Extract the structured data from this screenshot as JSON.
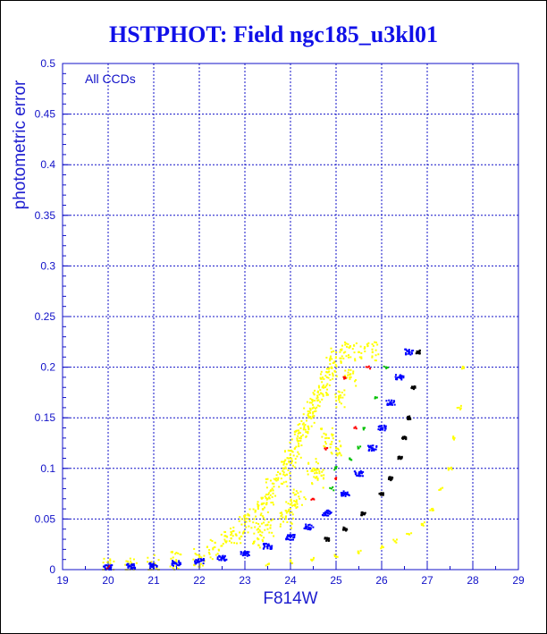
{
  "chart_data": {
    "type": "scatter",
    "title": "HSTPHOT: Field ngc185_u3kl01",
    "xlabel": "F814W",
    "ylabel": "photometric error",
    "annotation": "All CCDs",
    "xlim": [
      19,
      29
    ],
    "ylim": [
      0,
      0.5
    ],
    "x_ticks": [
      "19",
      "20",
      "21",
      "22",
      "23",
      "24",
      "25",
      "26",
      "27",
      "28",
      "29"
    ],
    "y_ticks": [
      "0",
      "0.05",
      "0.1",
      "0.15",
      "0.2",
      "0.25",
      "0.3",
      "0.35",
      "0.4",
      "0.45",
      "0.5"
    ],
    "grid": true,
    "series": [
      {
        "color": "#ffff00",
        "description_points": "broad scatter above the main sequence",
        "points": [
          [
            20.0,
            0.002
          ],
          [
            20.5,
            0.003
          ],
          [
            21.0,
            0.005
          ],
          [
            21.5,
            0.008
          ],
          [
            22.0,
            0.012
          ],
          [
            22.3,
            0.02
          ],
          [
            22.6,
            0.028
          ],
          [
            22.8,
            0.035
          ],
          [
            23.0,
            0.045
          ],
          [
            23.2,
            0.05
          ],
          [
            23.4,
            0.06
          ],
          [
            23.5,
            0.07
          ],
          [
            23.6,
            0.08
          ],
          [
            23.8,
            0.09
          ],
          [
            23.9,
            0.1
          ],
          [
            24.0,
            0.11
          ],
          [
            24.1,
            0.12
          ],
          [
            24.2,
            0.13
          ],
          [
            24.3,
            0.14
          ],
          [
            24.4,
            0.15
          ],
          [
            24.5,
            0.16
          ],
          [
            24.6,
            0.17
          ],
          [
            24.7,
            0.18
          ],
          [
            24.8,
            0.19
          ],
          [
            24.9,
            0.2
          ],
          [
            25.0,
            0.21
          ],
          [
            25.2,
            0.215
          ],
          [
            25.5,
            0.215
          ],
          [
            25.8,
            0.215
          ],
          [
            24.5,
            0.1
          ],
          [
            24.2,
            0.07
          ],
          [
            23.9,
            0.05
          ],
          [
            23.5,
            0.04
          ],
          [
            24.8,
            0.13
          ],
          [
            25.1,
            0.17
          ],
          [
            25.3,
            0.19
          ],
          [
            24.0,
            0.06
          ],
          [
            23.3,
            0.03
          ],
          [
            24.6,
            0.09
          ],
          [
            25.0,
            0.12
          ]
        ]
      },
      {
        "color": "#ffff00",
        "description_points": "faint lower yellow branch",
        "points": [
          [
            23.5,
            0.005
          ],
          [
            24.0,
            0.008
          ],
          [
            24.5,
            0.01
          ],
          [
            25.0,
            0.013
          ],
          [
            25.5,
            0.017
          ],
          [
            26.0,
            0.022
          ],
          [
            26.3,
            0.028
          ],
          [
            26.6,
            0.035
          ],
          [
            26.9,
            0.045
          ],
          [
            27.1,
            0.06
          ],
          [
            27.3,
            0.08
          ],
          [
            27.5,
            0.1
          ],
          [
            27.6,
            0.13
          ],
          [
            27.7,
            0.16
          ],
          [
            27.8,
            0.2
          ]
        ]
      },
      {
        "color": "#0000ff",
        "description_points": "main sequence",
        "points": [
          [
            20.0,
            0.002
          ],
          [
            20.5,
            0.003
          ],
          [
            21.0,
            0.004
          ],
          [
            21.5,
            0.006
          ],
          [
            22.0,
            0.008
          ],
          [
            22.5,
            0.011
          ],
          [
            23.0,
            0.016
          ],
          [
            23.5,
            0.023
          ],
          [
            24.0,
            0.032
          ],
          [
            24.4,
            0.042
          ],
          [
            24.8,
            0.056
          ],
          [
            25.2,
            0.075
          ],
          [
            25.5,
            0.095
          ],
          [
            25.8,
            0.12
          ],
          [
            26.0,
            0.14
          ],
          [
            26.2,
            0.165
          ],
          [
            26.4,
            0.19
          ],
          [
            26.6,
            0.215
          ]
        ]
      },
      {
        "color": "#000000",
        "description_points": "lower edge of sequence",
        "points": [
          [
            24.8,
            0.03
          ],
          [
            25.2,
            0.04
          ],
          [
            25.6,
            0.055
          ],
          [
            26.0,
            0.075
          ],
          [
            26.2,
            0.09
          ],
          [
            26.4,
            0.11
          ],
          [
            26.5,
            0.13
          ],
          [
            26.6,
            0.15
          ],
          [
            26.7,
            0.18
          ],
          [
            26.8,
            0.215
          ]
        ]
      },
      {
        "color": "#00c000",
        "description_points": "scattered green points",
        "points": [
          [
            24.9,
            0.08
          ],
          [
            25.3,
            0.11
          ],
          [
            25.6,
            0.14
          ],
          [
            25.9,
            0.17
          ],
          [
            26.1,
            0.2
          ],
          [
            25.0,
            0.1
          ],
          [
            25.5,
            0.12
          ]
        ]
      },
      {
        "color": "#ff0000",
        "description_points": "scattered red points",
        "points": [
          [
            20.0,
            0.002
          ],
          [
            24.5,
            0.07
          ],
          [
            25.0,
            0.09
          ],
          [
            25.4,
            0.14
          ],
          [
            25.7,
            0.2
          ],
          [
            25.2,
            0.19
          ],
          [
            24.8,
            0.12
          ]
        ]
      }
    ]
  }
}
